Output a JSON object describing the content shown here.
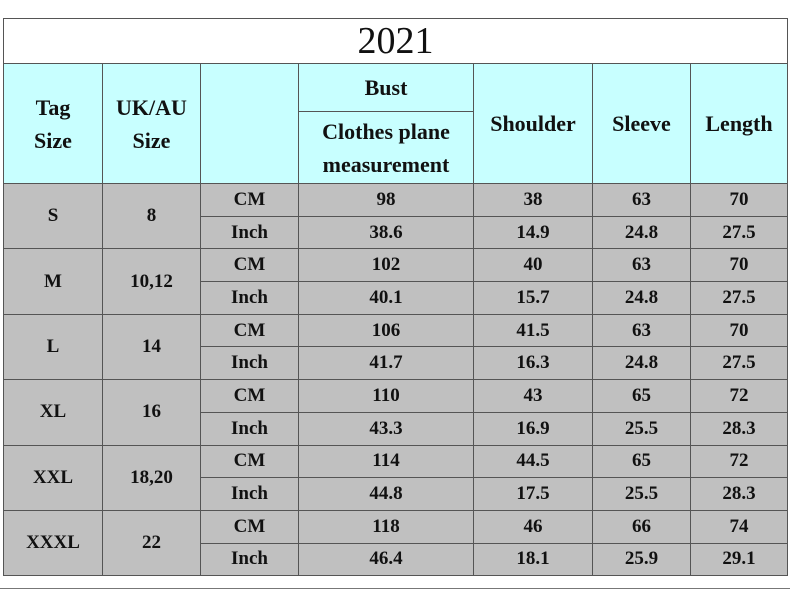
{
  "title": "2021",
  "header": {
    "tag_size": "Tag Size",
    "uk_au_size": "UK/AU Size",
    "bust": "Bust",
    "bust_sub": "Clothes plane measurement",
    "shoulder": "Shoulder",
    "sleeve": "Sleeve",
    "length": "Length"
  },
  "rows": [
    {
      "tag": "S",
      "uk": "8",
      "cm_label": "CM",
      "cm": [
        98,
        38,
        63,
        70
      ],
      "inch_label": "Inch",
      "inch": [
        38.6,
        14.9,
        24.8,
        27.5
      ]
    },
    {
      "tag": "M",
      "uk": "10,12",
      "cm_label": "CM",
      "cm": [
        102,
        40,
        63,
        70
      ],
      "inch_label": "Inch",
      "inch": [
        40.1,
        15.7,
        24.8,
        27.5
      ]
    },
    {
      "tag": "L",
      "uk": "14",
      "cm_label": "CM",
      "cm": [
        106,
        41.5,
        63,
        70
      ],
      "inch_label": "Inch",
      "inch": [
        41.7,
        16.3,
        24.8,
        27.5
      ]
    },
    {
      "tag": "XL",
      "uk": "16",
      "cm_label": "CM",
      "cm": [
        110,
        43,
        65,
        72
      ],
      "inch_label": "Inch",
      "inch": [
        43.3,
        16.9,
        25.5,
        28.3
      ]
    },
    {
      "tag": "XXL",
      "uk": "18,20",
      "cm_label": "CM",
      "cm": [
        114,
        44.5,
        65,
        72
      ],
      "inch_label": "Inch",
      "inch": [
        44.8,
        17.5,
        25.5,
        28.3
      ]
    },
    {
      "tag": "XXXL",
      "uk": "22",
      "cm_label": "CM",
      "cm": [
        118,
        46,
        66,
        74
      ],
      "inch_label": "Inch",
      "inch": [
        46.4,
        18.1,
        25.9,
        29.1
      ]
    }
  ]
}
